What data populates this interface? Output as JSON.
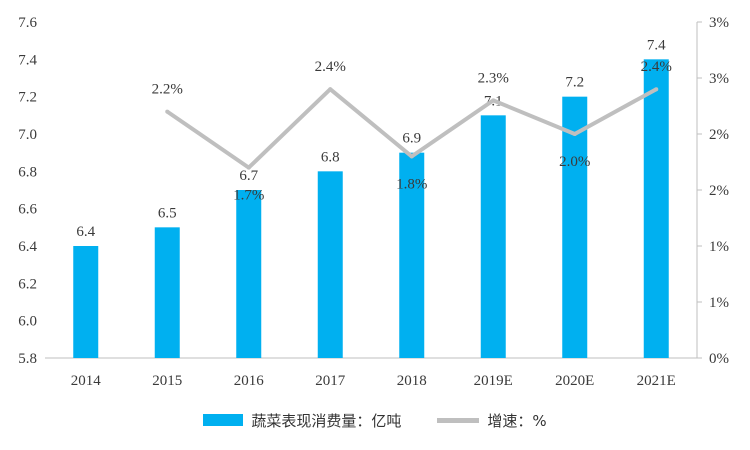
{
  "chart_data": {
    "type": "bar",
    "categories": [
      "2014",
      "2015",
      "2016",
      "2017",
      "2018",
      "2019E",
      "2020E",
      "2021E"
    ],
    "series": [
      {
        "name": "蔬菜表现消费量：亿吨",
        "type": "bar",
        "axis": "left",
        "values": [
          6.4,
          6.5,
          6.7,
          6.8,
          6.9,
          7.1,
          7.2,
          7.4
        ],
        "value_labels": [
          "6.4",
          "6.5",
          "6.7",
          "6.8",
          "6.9",
          "7.1",
          "7.2",
          "7.4"
        ],
        "color": "#00b0f0"
      },
      {
        "name": "增速：%",
        "type": "line",
        "axis": "right",
        "values": [
          null,
          2.2,
          1.7,
          2.4,
          1.8,
          2.3,
          2.0,
          2.4
        ],
        "value_labels": [
          null,
          "2.2%",
          "1.7%",
          "2.4%",
          "1.8%",
          "2.3%",
          "2.0%",
          "2.4%"
        ],
        "color": "#bfbfbf"
      }
    ],
    "y_left": {
      "ylim": [
        5.8,
        7.6
      ],
      "ticks": [
        5.8,
        6.0,
        6.2,
        6.4,
        6.6,
        6.8,
        7.0,
        7.2,
        7.4,
        7.6
      ],
      "tick_labels": [
        "5.8",
        "6.0",
        "6.2",
        "6.4",
        "6.6",
        "6.8",
        "7.0",
        "7.2",
        "7.4",
        "7.6"
      ]
    },
    "y_right": {
      "ylim": [
        0,
        3
      ],
      "ticks": [
        0,
        0.5,
        1,
        1.5,
        2,
        2.5,
        3
      ],
      "tick_labels": [
        "0%",
        "1%",
        "1%",
        "2%",
        "2%",
        "3%",
        "3%"
      ]
    },
    "grid": false,
    "legend_position": "bottom"
  },
  "legend": {
    "bar_label": "蔬菜表现消费量：亿吨",
    "line_label": "增速：%"
  }
}
